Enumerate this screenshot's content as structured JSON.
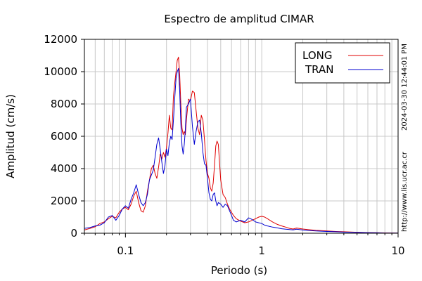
{
  "chart_data": {
    "type": "line",
    "title": "Espectro de amplitud CIMAR",
    "xlabel": "Periodo (s)",
    "ylabel": "Amplitud (cm/s)",
    "x_scale": "log",
    "xlim": [
      0.05,
      10
    ],
    "ylim": [
      0,
      12000
    ],
    "x_tick_labels": [
      {
        "value": 0.1,
        "label": "0.1"
      },
      {
        "value": 1,
        "label": "1"
      },
      {
        "value": 10,
        "label": "10"
      }
    ],
    "y_ticks": [
      0,
      2000,
      4000,
      6000,
      8000,
      10000,
      12000
    ],
    "grid": true,
    "legend_position": "top-right",
    "side_text": {
      "timestamp": "2024-03-30 12:44:01 PM",
      "url": "http://www.lis.ucr.ac.cr"
    },
    "series": [
      {
        "name": "LONG",
        "color": "#e00000",
        "points": [
          [
            0.05,
            200
          ],
          [
            0.055,
            300
          ],
          [
            0.06,
            400
          ],
          [
            0.065,
            600
          ],
          [
            0.07,
            700
          ],
          [
            0.075,
            900
          ],
          [
            0.08,
            1050
          ],
          [
            0.085,
            950
          ],
          [
            0.09,
            1300
          ],
          [
            0.095,
            1500
          ],
          [
            0.1,
            1600
          ],
          [
            0.105,
            1450
          ],
          [
            0.11,
            1800
          ],
          [
            0.115,
            2300
          ],
          [
            0.12,
            2600
          ],
          [
            0.125,
            1900
          ],
          [
            0.13,
            1400
          ],
          [
            0.135,
            1300
          ],
          [
            0.14,
            1700
          ],
          [
            0.145,
            2600
          ],
          [
            0.15,
            3300
          ],
          [
            0.155,
            4000
          ],
          [
            0.16,
            4200
          ],
          [
            0.165,
            3700
          ],
          [
            0.17,
            3400
          ],
          [
            0.175,
            4100
          ],
          [
            0.18,
            4900
          ],
          [
            0.185,
            4600
          ],
          [
            0.19,
            5000
          ],
          [
            0.195,
            4700
          ],
          [
            0.2,
            5300
          ],
          [
            0.205,
            6200
          ],
          [
            0.21,
            7300
          ],
          [
            0.215,
            6500
          ],
          [
            0.22,
            6400
          ],
          [
            0.225,
            8500
          ],
          [
            0.23,
            9300
          ],
          [
            0.235,
            10000
          ],
          [
            0.24,
            10700
          ],
          [
            0.245,
            10900
          ],
          [
            0.25,
            9800
          ],
          [
            0.255,
            8000
          ],
          [
            0.26,
            6500
          ],
          [
            0.265,
            6100
          ],
          [
            0.27,
            6300
          ],
          [
            0.275,
            6100
          ],
          [
            0.28,
            7000
          ],
          [
            0.29,
            8300
          ],
          [
            0.3,
            8200
          ],
          [
            0.31,
            8800
          ],
          [
            0.32,
            8700
          ],
          [
            0.33,
            7600
          ],
          [
            0.34,
            6500
          ],
          [
            0.35,
            6100
          ],
          [
            0.36,
            7300
          ],
          [
            0.37,
            7000
          ],
          [
            0.38,
            5800
          ],
          [
            0.39,
            4500
          ],
          [
            0.4,
            3700
          ],
          [
            0.41,
            3400
          ],
          [
            0.42,
            2800
          ],
          [
            0.43,
            2600
          ],
          [
            0.44,
            3100
          ],
          [
            0.45,
            4200
          ],
          [
            0.46,
            5400
          ],
          [
            0.47,
            5700
          ],
          [
            0.48,
            5500
          ],
          [
            0.49,
            4400
          ],
          [
            0.5,
            3300
          ],
          [
            0.52,
            2400
          ],
          [
            0.54,
            2200
          ],
          [
            0.56,
            1800
          ],
          [
            0.58,
            1500
          ],
          [
            0.6,
            1300
          ],
          [
            0.62,
            1100
          ],
          [
            0.65,
            900
          ],
          [
            0.7,
            750
          ],
          [
            0.75,
            650
          ],
          [
            0.8,
            700
          ],
          [
            0.85,
            800
          ],
          [
            0.9,
            900
          ],
          [
            0.95,
            1000
          ],
          [
            1.0,
            1050
          ],
          [
            1.05,
            1000
          ],
          [
            1.1,
            900
          ],
          [
            1.2,
            700
          ],
          [
            1.3,
            550
          ],
          [
            1.4,
            450
          ],
          [
            1.5,
            380
          ],
          [
            1.6,
            300
          ],
          [
            1.7,
            260
          ],
          [
            1.8,
            320
          ],
          [
            2.0,
            260
          ],
          [
            2.2,
            220
          ],
          [
            2.5,
            180
          ],
          [
            3.0,
            140
          ],
          [
            3.5,
            110
          ],
          [
            4.0,
            90
          ],
          [
            5.0,
            60
          ],
          [
            6.0,
            40
          ],
          [
            7.0,
            30
          ],
          [
            8.0,
            20
          ],
          [
            10.0,
            10
          ]
        ]
      },
      {
        "name": "TRAN",
        "color": "#0000d0",
        "points": [
          [
            0.05,
            300
          ],
          [
            0.055,
            350
          ],
          [
            0.06,
            450
          ],
          [
            0.065,
            500
          ],
          [
            0.07,
            650
          ],
          [
            0.075,
            1000
          ],
          [
            0.08,
            1100
          ],
          [
            0.085,
            800
          ],
          [
            0.09,
            1100
          ],
          [
            0.095,
            1500
          ],
          [
            0.1,
            1700
          ],
          [
            0.105,
            1550
          ],
          [
            0.11,
            2100
          ],
          [
            0.115,
            2500
          ],
          [
            0.12,
            3000
          ],
          [
            0.125,
            2400
          ],
          [
            0.13,
            1900
          ],
          [
            0.135,
            1700
          ],
          [
            0.14,
            1900
          ],
          [
            0.145,
            2400
          ],
          [
            0.15,
            3300
          ],
          [
            0.155,
            3600
          ],
          [
            0.16,
            3900
          ],
          [
            0.165,
            4700
          ],
          [
            0.17,
            5500
          ],
          [
            0.175,
            5900
          ],
          [
            0.18,
            5200
          ],
          [
            0.185,
            4400
          ],
          [
            0.19,
            3700
          ],
          [
            0.195,
            4200
          ],
          [
            0.2,
            5200
          ],
          [
            0.205,
            4800
          ],
          [
            0.21,
            5600
          ],
          [
            0.215,
            6000
          ],
          [
            0.22,
            5800
          ],
          [
            0.225,
            7000
          ],
          [
            0.23,
            8400
          ],
          [
            0.235,
            9600
          ],
          [
            0.24,
            10000
          ],
          [
            0.245,
            10200
          ],
          [
            0.25,
            8800
          ],
          [
            0.255,
            6800
          ],
          [
            0.26,
            5400
          ],
          [
            0.265,
            4900
          ],
          [
            0.27,
            5500
          ],
          [
            0.275,
            6400
          ],
          [
            0.28,
            7800
          ],
          [
            0.29,
            8000
          ],
          [
            0.3,
            8300
          ],
          [
            0.31,
            6600
          ],
          [
            0.32,
            5500
          ],
          [
            0.33,
            6300
          ],
          [
            0.34,
            6900
          ],
          [
            0.35,
            7000
          ],
          [
            0.36,
            6200
          ],
          [
            0.37,
            5000
          ],
          [
            0.38,
            4300
          ],
          [
            0.39,
            4200
          ],
          [
            0.4,
            3400
          ],
          [
            0.41,
            2500
          ],
          [
            0.42,
            2100
          ],
          [
            0.43,
            2000
          ],
          [
            0.44,
            2400
          ],
          [
            0.45,
            2500
          ],
          [
            0.46,
            2000
          ],
          [
            0.47,
            1700
          ],
          [
            0.48,
            1900
          ],
          [
            0.5,
            1800
          ],
          [
            0.52,
            1600
          ],
          [
            0.54,
            1800
          ],
          [
            0.56,
            1700
          ],
          [
            0.58,
            1400
          ],
          [
            0.6,
            1100
          ],
          [
            0.62,
            800
          ],
          [
            0.65,
            700
          ],
          [
            0.7,
            800
          ],
          [
            0.75,
            700
          ],
          [
            0.8,
            950
          ],
          [
            0.85,
            850
          ],
          [
            0.9,
            700
          ],
          [
            0.95,
            650
          ],
          [
            1.0,
            600
          ],
          [
            1.05,
            500
          ],
          [
            1.1,
            450
          ],
          [
            1.2,
            380
          ],
          [
            1.3,
            330
          ],
          [
            1.4,
            280
          ],
          [
            1.5,
            250
          ],
          [
            1.6,
            230
          ],
          [
            1.7,
            210
          ],
          [
            1.8,
            250
          ],
          [
            2.0,
            200
          ],
          [
            2.2,
            170
          ],
          [
            2.5,
            140
          ],
          [
            3.0,
            110
          ],
          [
            3.5,
            90
          ],
          [
            4.0,
            70
          ],
          [
            5.0,
            50
          ],
          [
            6.0,
            35
          ],
          [
            7.0,
            25
          ],
          [
            8.0,
            15
          ],
          [
            10.0,
            8
          ]
        ]
      }
    ]
  }
}
